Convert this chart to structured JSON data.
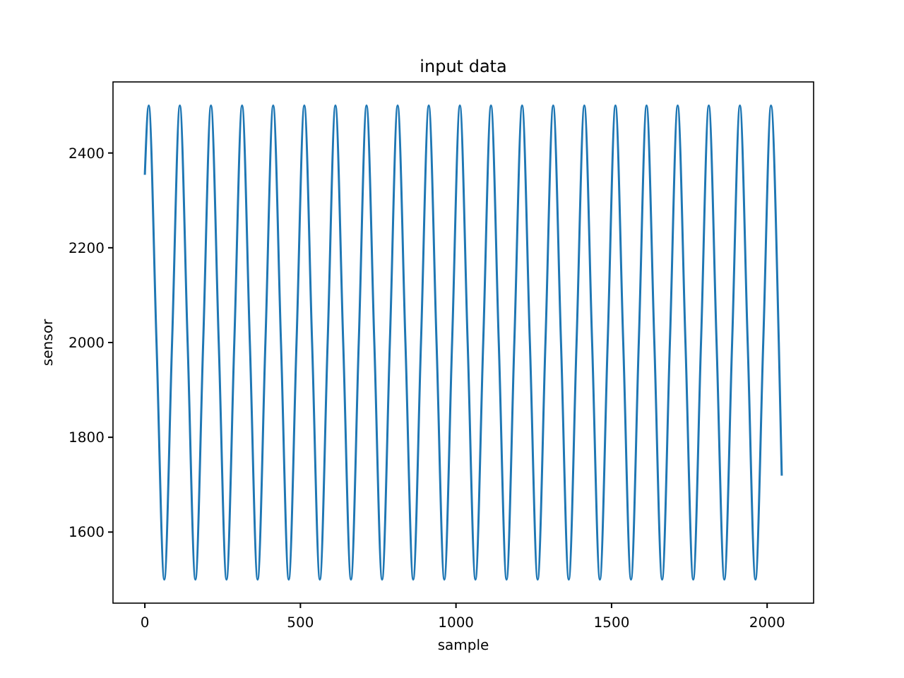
{
  "chart_data": {
    "type": "line",
    "title": "input data",
    "xlabel": "sample",
    "ylabel": "sensor",
    "xlim": [
      -102.35,
      2149.35
    ],
    "ylim": [
      1450,
      2550
    ],
    "xticks": [
      0,
      500,
      1000,
      1500,
      2000
    ],
    "yticks": [
      1600,
      1800,
      2000,
      2200,
      2400
    ],
    "grid": false,
    "marker": "none",
    "line_style": "solid",
    "x": [
      0,
      12.5,
      37.5,
      62.5,
      87.5,
      112.5,
      137.5,
      162.5,
      187.5,
      212.5,
      237.5,
      262.5,
      287.5,
      312.5,
      337.5,
      362.5,
      387.5,
      412.5,
      437.5,
      462.5,
      487.5,
      512.5,
      537.5,
      562.5,
      587.5,
      612.5,
      637.5,
      662.5,
      687.5,
      712.5,
      737.5,
      762.5,
      787.5,
      812.5,
      837.5,
      862.5,
      887.5,
      912.5,
      937.5,
      962.5,
      987.5,
      1012.5,
      1037.5,
      1062.5,
      1087.5,
      1112.5,
      1137.5,
      1162.5,
      1187.5,
      1212.5,
      1237.5,
      1262.5,
      1287.5,
      1312.5,
      1337.5,
      1362.5,
      1387.5,
      1412.5,
      1437.5,
      1462.5,
      1487.5,
      1512.5,
      1537.5,
      1562.5,
      1587.5,
      1612.5,
      1637.5,
      1662.5,
      1687.5,
      1712.5,
      1737.5,
      1762.5,
      1787.5,
      1812.5,
      1837.5,
      1862.5,
      1887.5,
      1912.5,
      1937.5,
      1962.5,
      1987.5,
      2012.5,
      2037.5,
      2047
    ],
    "series": [
      {
        "color": "#1f77b4",
        "values": [
          2354,
          2500,
          2000,
          1500,
          2000,
          2500,
          2000,
          1500,
          2000,
          2500,
          2000,
          1500,
          2000,
          2500,
          2000,
          1500,
          2000,
          2500,
          2000,
          1500,
          2000,
          2500,
          2000,
          1500,
          2000,
          2500,
          2000,
          1500,
          2000,
          2500,
          2000,
          1500,
          2000,
          2500,
          2000,
          1500,
          2000,
          2500,
          2000,
          1500,
          2000,
          2500,
          2000,
          1500,
          2000,
          2500,
          2000,
          1500,
          2000,
          2500,
          2000,
          1500,
          2000,
          2500,
          2000,
          1500,
          2000,
          2500,
          2000,
          1500,
          2000,
          2500,
          2000,
          1500,
          2000,
          2500,
          2000,
          1500,
          2000,
          2500,
          2000,
          1500,
          2000,
          2500,
          2000,
          1500,
          2000,
          2500,
          2000,
          1500,
          2000,
          2500,
          2000,
          1719
        ]
      }
    ]
  }
}
